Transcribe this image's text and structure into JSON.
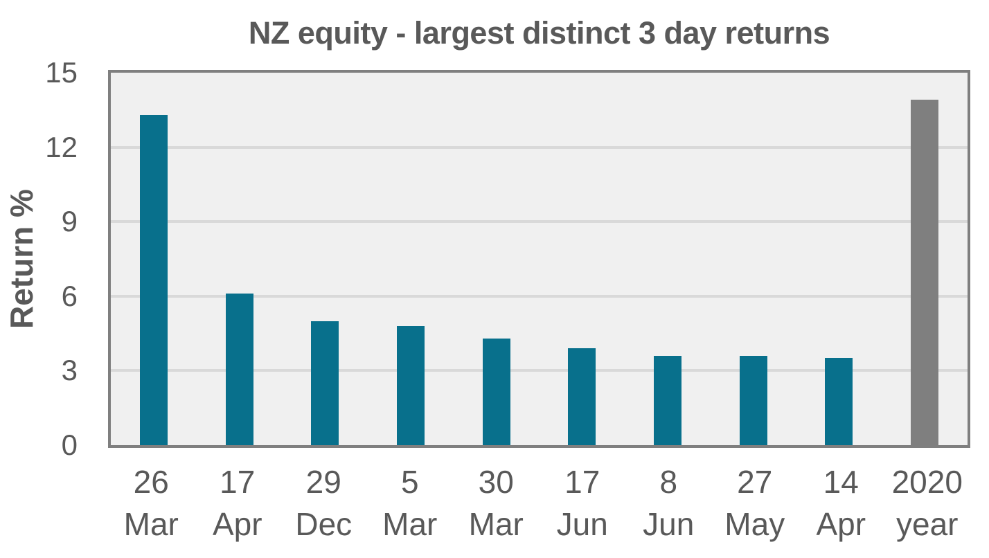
{
  "chart_data": {
    "type": "bar",
    "title": "NZ equity - largest distinct 3 day returns",
    "xlabel": "",
    "ylabel": "Return %",
    "ylim": [
      0,
      15
    ],
    "yticks": [
      0,
      3,
      6,
      9,
      12,
      15
    ],
    "grid": true,
    "legend": false,
    "categories": [
      [
        "26",
        "Mar"
      ],
      [
        "17",
        "Apr"
      ],
      [
        "29",
        "Dec"
      ],
      [
        "5",
        "Mar"
      ],
      [
        "30",
        "Mar"
      ],
      [
        "17",
        "Jun"
      ],
      [
        "8",
        "Jun"
      ],
      [
        "27",
        "May"
      ],
      [
        "14",
        "Apr"
      ],
      [
        "2020",
        "year"
      ]
    ],
    "values": [
      13.3,
      6.1,
      5.0,
      4.8,
      4.3,
      3.9,
      3.6,
      3.6,
      3.5,
      13.9
    ],
    "highlight_index": 9,
    "colors": {
      "bar_default": "#08708c",
      "bar_highlight": "#7f7f7f",
      "plot_background": "#f0f0f0",
      "gridline": "#d9d9d9",
      "plot_border": "#7f7f7f",
      "text": "#595959"
    }
  }
}
